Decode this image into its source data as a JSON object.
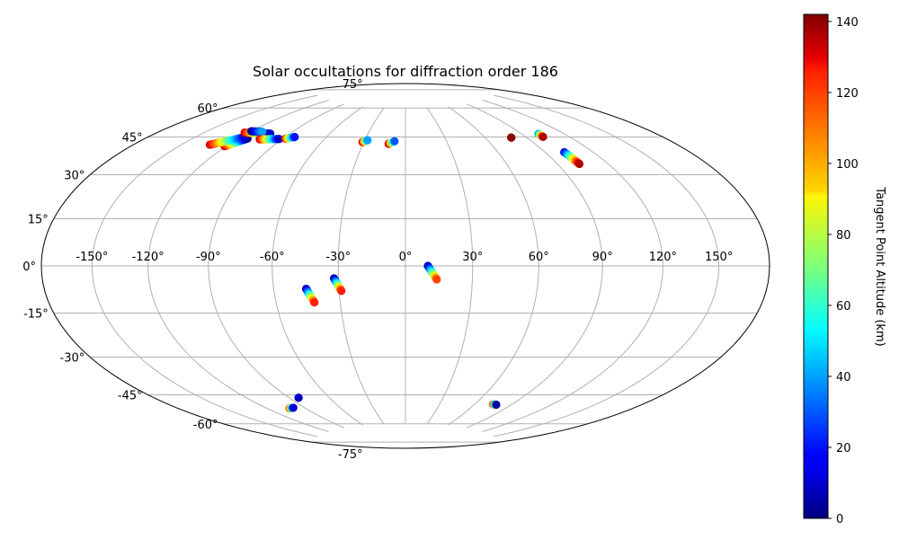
{
  "chart_data": {
    "type": "scatter",
    "projection": "hammer",
    "title": "Solar occultations for diffraction order 186",
    "grid": true,
    "x_ticks": [
      -150,
      -120,
      -90,
      -60,
      -30,
      0,
      30,
      60,
      90,
      120,
      150
    ],
    "x_tick_labels": [
      "-150°",
      "-120°",
      "-90°",
      "-60°",
      "-30°",
      "0°",
      "30°",
      "60°",
      "90°",
      "120°",
      "150°"
    ],
    "y_ticks": [
      -75,
      -60,
      -45,
      -30,
      -15,
      0,
      15,
      30,
      45,
      60,
      75
    ],
    "y_tick_labels": [
      "-75°",
      "-60°",
      "-45°",
      "-30°",
      "-15°",
      "0°",
      "15°",
      "30°",
      "45°",
      "60°",
      "75°"
    ],
    "colorbar": {
      "label": "Tangent Point Altitude (km)",
      "colormap": "jet",
      "range": [
        0,
        142
      ],
      "ticks": [
        0,
        20,
        40,
        60,
        80,
        100,
        120,
        140
      ]
    },
    "tracks": [
      {
        "start": [
          -121,
          49.0
        ],
        "end": [
          -114,
          53.5
        ],
        "alt_start": 130,
        "alt_end": 0
      },
      {
        "start": [
          -132,
          48.5
        ],
        "end": [
          -117,
          54.0
        ],
        "alt_start": 130,
        "alt_end": 10
      },
      {
        "start": [
          -123,
          55.5
        ],
        "end": [
          -104,
          57.0
        ],
        "alt_start": 130,
        "alt_end": 10
      },
      {
        "start": [
          -120,
          56.5
        ],
        "end": [
          -112,
          57.2
        ],
        "alt_start": 0,
        "alt_end": 40
      },
      {
        "start": [
          -105,
          54.0
        ],
        "end": [
          -92,
          55.3
        ],
        "alt_start": 130,
        "alt_end": 10
      },
      {
        "start": [
          -88,
          55.8
        ],
        "end": [
          -83,
          57.0
        ],
        "alt_start": 120,
        "alt_end": 20
      },
      {
        "start": [
          -31,
          57.0
        ],
        "end": [
          -28,
          58.0
        ],
        "alt_start": 130,
        "alt_end": 40
      },
      {
        "start": [
          -12,
          56.5
        ],
        "end": [
          -8,
          57.8
        ],
        "alt_start": 130,
        "alt_end": 30
      },
      {
        "start": [
          79,
          57.0
        ],
        "end": [
          79,
          57.0
        ],
        "alt_start": 140,
        "alt_end": 140
      },
      {
        "start": [
          102,
          57.0
        ],
        "end": [
          102,
          55.5
        ],
        "alt_start": 40,
        "alt_end": 135
      },
      {
        "start": [
          102,
          48.0
        ],
        "end": [
          103,
          42.5
        ],
        "alt_start": 15,
        "alt_end": 135
      },
      {
        "start": [
          10,
          0.0
        ],
        "end": [
          14,
          -6.0
        ],
        "alt_start": 5,
        "alt_end": 115
      },
      {
        "start": [
          -45,
          -10.0
        ],
        "end": [
          -42,
          -16.0
        ],
        "alt_start": 5,
        "alt_end": 120
      },
      {
        "start": [
          -32,
          -5.5
        ],
        "end": [
          -29,
          -11.0
        ],
        "alt_start": 5,
        "alt_end": 120
      },
      {
        "start": [
          -103,
          -62.5
        ],
        "end": [
          -99,
          -62.5
        ],
        "alt_start": 110,
        "alt_end": 10
      },
      {
        "start": [
          -83,
          -58.5
        ],
        "end": [
          -83,
          -58.5
        ],
        "alt_start": 10,
        "alt_end": 10
      },
      {
        "start": [
          75,
          -62.5
        ],
        "end": [
          78,
          -62.5
        ],
        "alt_start": 110,
        "alt_end": 5
      }
    ]
  }
}
